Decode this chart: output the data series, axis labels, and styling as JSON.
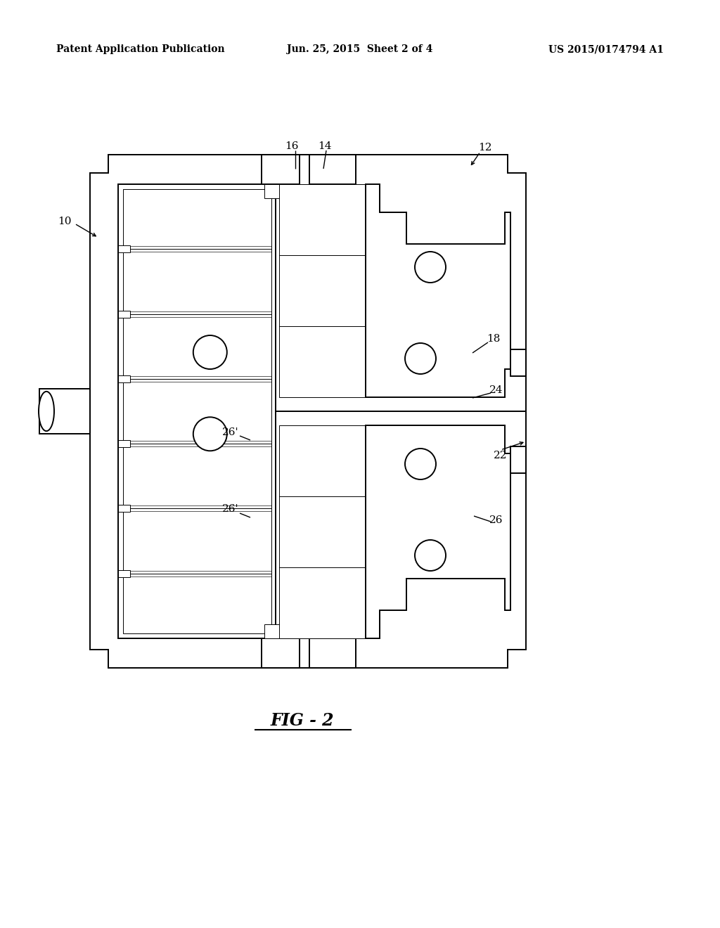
{
  "header_left": "Patent Application Publication",
  "header_mid": "Jun. 25, 2015  Sheet 2 of 4",
  "header_right": "US 2015/0174794 A1",
  "figure_label": "FIG - 2",
  "bg_color": "#ffffff",
  "line_color": "#000000",
  "lw_main": 1.4,
  "lw_thin": 0.7,
  "label_fontsize": 11,
  "header_fontsize": 10,
  "DL": 128,
  "DR": 748,
  "DT": 220,
  "DB": 950,
  "nw": 26,
  "nh": 26,
  "MX": 392
}
